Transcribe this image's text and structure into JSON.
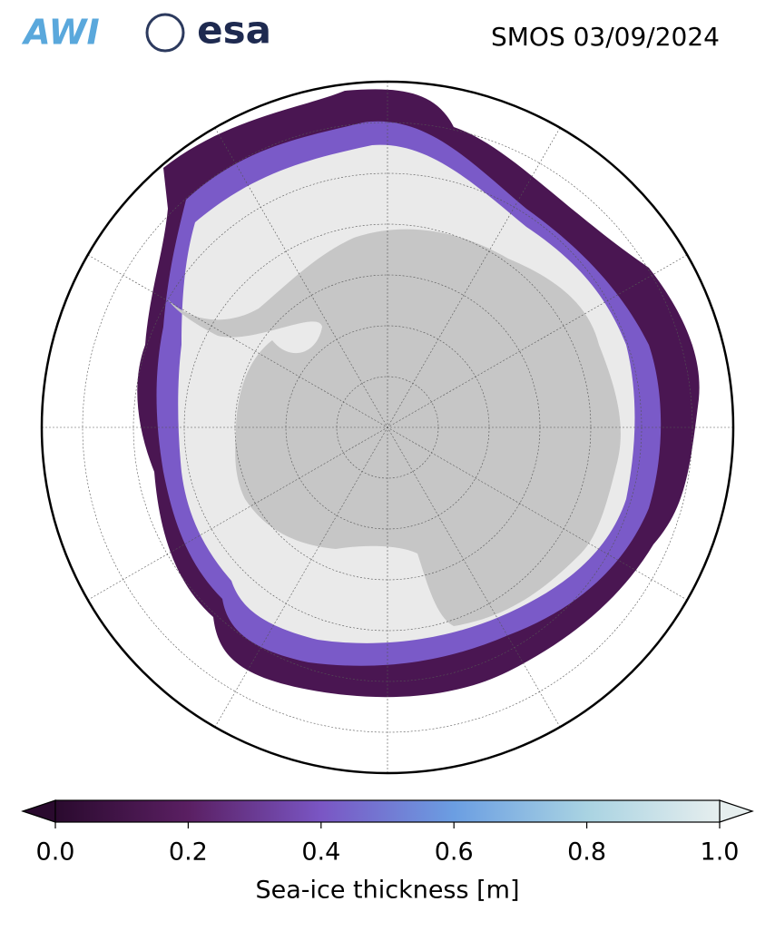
{
  "header": {
    "logos": [
      "AWI",
      "esa"
    ],
    "title": "SMOS 03/09/2024"
  },
  "colorbar": {
    "label": "Sea-ice thickness [m]",
    "range": [
      0,
      1
    ],
    "ticks": [
      {
        "value": 0,
        "label": "0.0"
      },
      {
        "value": 0.2,
        "label": "0.2"
      },
      {
        "value": 0.4,
        "label": "0.4"
      },
      {
        "value": 0.6,
        "label": "0.6"
      },
      {
        "value": 0.8,
        "label": "0.8"
      },
      {
        "value": 1,
        "label": "1.0"
      }
    ],
    "colors": [
      "#2a0a2e",
      "#5a1f62",
      "#7a56c4",
      "#6b9ee2",
      "#a9d3e2",
      "#e6eeee"
    ]
  }
}
